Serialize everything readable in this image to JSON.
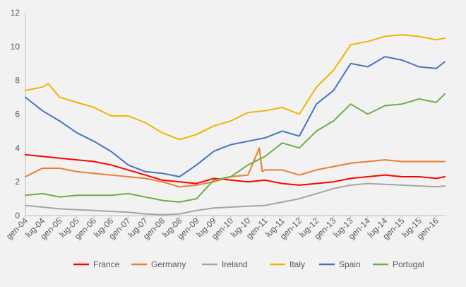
{
  "chart_data": {
    "type": "line",
    "title": "",
    "xlabel": "",
    "ylabel": "",
    "ylim": [
      0,
      12
    ],
    "y_ticks": [
      0,
      2,
      4,
      6,
      8,
      10,
      12
    ],
    "grid": false,
    "legend_position": "bottom",
    "x_tick_labels": [
      "gen-04",
      "lug-04",
      "gen-05",
      "lug-05",
      "gen-06",
      "lug-06",
      "gen-07",
      "lug-07",
      "gen-08",
      "lug-08",
      "gen-09",
      "lug-09",
      "gen-10",
      "lug-10",
      "gen-11",
      "lug-11",
      "gen-12",
      "lug-12",
      "gen-13",
      "lug-13",
      "gen-14",
      "lug-14",
      "gen-15",
      "lug-15",
      "gen-16"
    ],
    "x_range": [
      "gen-04",
      "apr-16"
    ],
    "x_unit": "month",
    "series": [
      {
        "name": "France",
        "color": "#ff0000",
        "points": [
          [
            "gen-04",
            3.6
          ],
          [
            "lug-04",
            3.5
          ],
          [
            "gen-05",
            3.4
          ],
          [
            "lug-05",
            3.3
          ],
          [
            "gen-06",
            3.2
          ],
          [
            "lug-06",
            3.0
          ],
          [
            "gen-07",
            2.7
          ],
          [
            "lug-07",
            2.4
          ],
          [
            "gen-08",
            2.1
          ],
          [
            "lug-08",
            2.0
          ],
          [
            "gen-09",
            1.9
          ],
          [
            "lug-09",
            2.2
          ],
          [
            "gen-10",
            2.1
          ],
          [
            "lug-10",
            2.0
          ],
          [
            "gen-11",
            2.1
          ],
          [
            "lug-11",
            1.9
          ],
          [
            "gen-12",
            1.8
          ],
          [
            "lug-12",
            1.9
          ],
          [
            "gen-13",
            2.0
          ],
          [
            "lug-13",
            2.2
          ],
          [
            "gen-14",
            2.3
          ],
          [
            "lug-14",
            2.4
          ],
          [
            "gen-15",
            2.3
          ],
          [
            "lug-15",
            2.3
          ],
          [
            "gen-16",
            2.2
          ],
          [
            "apr-16",
            2.3
          ]
        ]
      },
      {
        "name": "Germany",
        "color": "#ed7d31",
        "points": [
          [
            "gen-04",
            2.3
          ],
          [
            "lug-04",
            2.8
          ],
          [
            "gen-05",
            2.8
          ],
          [
            "lug-05",
            2.6
          ],
          [
            "gen-06",
            2.5
          ],
          [
            "lug-06",
            2.4
          ],
          [
            "gen-07",
            2.3
          ],
          [
            "lug-07",
            2.2
          ],
          [
            "gen-08",
            2.0
          ],
          [
            "lug-08",
            1.7
          ],
          [
            "gen-09",
            1.8
          ],
          [
            "lug-09",
            2.0
          ],
          [
            "gen-10",
            2.3
          ],
          [
            "lug-10",
            2.4
          ],
          [
            "nov-10",
            4.0
          ],
          [
            "dic-10",
            2.6
          ],
          [
            "gen-11",
            2.7
          ],
          [
            "lug-11",
            2.7
          ],
          [
            "gen-12",
            2.4
          ],
          [
            "lug-12",
            2.7
          ],
          [
            "gen-13",
            2.9
          ],
          [
            "lug-13",
            3.1
          ],
          [
            "gen-14",
            3.2
          ],
          [
            "lug-14",
            3.3
          ],
          [
            "gen-15",
            3.2
          ],
          [
            "lug-15",
            3.2
          ],
          [
            "gen-16",
            3.2
          ],
          [
            "apr-16",
            3.2
          ]
        ]
      },
      {
        "name": "Ireland",
        "color": "#a5a5a5",
        "points": [
          [
            "gen-04",
            0.6
          ],
          [
            "lug-04",
            0.5
          ],
          [
            "gen-05",
            0.4
          ],
          [
            "lug-05",
            0.35
          ],
          [
            "gen-06",
            0.3
          ],
          [
            "lug-06",
            0.25
          ],
          [
            "gen-07",
            0.2
          ],
          [
            "lug-07",
            0.1
          ],
          [
            "gen-08",
            0.05
          ],
          [
            "lug-08",
            0.1
          ],
          [
            "gen-09",
            0.3
          ],
          [
            "lug-09",
            0.45
          ],
          [
            "gen-10",
            0.5
          ],
          [
            "lug-10",
            0.55
          ],
          [
            "gen-11",
            0.6
          ],
          [
            "lug-11",
            0.8
          ],
          [
            "gen-12",
            1.0
          ],
          [
            "lug-12",
            1.3
          ],
          [
            "gen-13",
            1.6
          ],
          [
            "lug-13",
            1.8
          ],
          [
            "gen-14",
            1.9
          ],
          [
            "lug-14",
            1.85
          ],
          [
            "gen-15",
            1.8
          ],
          [
            "lug-15",
            1.75
          ],
          [
            "gen-16",
            1.7
          ],
          [
            "apr-16",
            1.75
          ]
        ]
      },
      {
        "name": "Italy",
        "color": "#f0b400",
        "points": [
          [
            "gen-04",
            7.4
          ],
          [
            "lug-04",
            7.6
          ],
          [
            "set-04",
            7.8
          ],
          [
            "gen-05",
            7.0
          ],
          [
            "lug-05",
            6.7
          ],
          [
            "gen-06",
            6.4
          ],
          [
            "lug-06",
            5.9
          ],
          [
            "gen-07",
            5.9
          ],
          [
            "lug-07",
            5.5
          ],
          [
            "gen-08",
            4.9
          ],
          [
            "lug-08",
            4.5
          ],
          [
            "gen-09",
            4.8
          ],
          [
            "lug-09",
            5.3
          ],
          [
            "gen-10",
            5.6
          ],
          [
            "lug-10",
            6.1
          ],
          [
            "gen-11",
            6.2
          ],
          [
            "lug-11",
            6.4
          ],
          [
            "gen-12",
            6.0
          ],
          [
            "lug-12",
            7.6
          ],
          [
            "gen-13",
            8.6
          ],
          [
            "lug-13",
            10.1
          ],
          [
            "gen-14",
            10.3
          ],
          [
            "lug-14",
            10.6
          ],
          [
            "gen-15",
            10.7
          ],
          [
            "lug-15",
            10.6
          ],
          [
            "gen-16",
            10.4
          ],
          [
            "apr-16",
            10.5
          ]
        ]
      },
      {
        "name": "Spain",
        "color": "#4472c4",
        "points": [
          [
            "gen-04",
            7.0
          ],
          [
            "lug-04",
            6.2
          ],
          [
            "gen-05",
            5.6
          ],
          [
            "lug-05",
            4.9
          ],
          [
            "gen-06",
            4.4
          ],
          [
            "lug-06",
            3.8
          ],
          [
            "gen-07",
            3.0
          ],
          [
            "lug-07",
            2.6
          ],
          [
            "gen-08",
            2.5
          ],
          [
            "lug-08",
            2.3
          ],
          [
            "gen-09",
            3.0
          ],
          [
            "lug-09",
            3.8
          ],
          [
            "gen-10",
            4.2
          ],
          [
            "lug-10",
            4.4
          ],
          [
            "gen-11",
            4.6
          ],
          [
            "lug-11",
            5.0
          ],
          [
            "gen-12",
            4.7
          ],
          [
            "lug-12",
            6.6
          ],
          [
            "gen-13",
            7.4
          ],
          [
            "lug-13",
            9.0
          ],
          [
            "gen-14",
            8.8
          ],
          [
            "lug-14",
            9.4
          ],
          [
            "gen-15",
            9.2
          ],
          [
            "lug-15",
            8.8
          ],
          [
            "gen-16",
            8.7
          ],
          [
            "apr-16",
            9.1
          ]
        ]
      },
      {
        "name": "Portugal",
        "color": "#70ad47",
        "points": [
          [
            "gen-04",
            1.2
          ],
          [
            "lug-04",
            1.3
          ],
          [
            "gen-05",
            1.1
          ],
          [
            "lug-05",
            1.2
          ],
          [
            "gen-06",
            1.2
          ],
          [
            "lug-06",
            1.2
          ],
          [
            "gen-07",
            1.3
          ],
          [
            "lug-07",
            1.1
          ],
          [
            "gen-08",
            0.9
          ],
          [
            "lug-08",
            0.8
          ],
          [
            "gen-09",
            1.0
          ],
          [
            "lug-09",
            2.1
          ],
          [
            "gen-10",
            2.3
          ],
          [
            "lug-10",
            3.0
          ],
          [
            "gen-11",
            3.5
          ],
          [
            "lug-11",
            4.3
          ],
          [
            "gen-12",
            4.0
          ],
          [
            "lug-12",
            5.0
          ],
          [
            "gen-13",
            5.6
          ],
          [
            "lug-13",
            6.6
          ],
          [
            "gen-14",
            6.0
          ],
          [
            "lug-14",
            6.5
          ],
          [
            "gen-15",
            6.6
          ],
          [
            "lug-15",
            6.9
          ],
          [
            "gen-16",
            6.7
          ],
          [
            "apr-16",
            7.2
          ]
        ]
      }
    ]
  }
}
